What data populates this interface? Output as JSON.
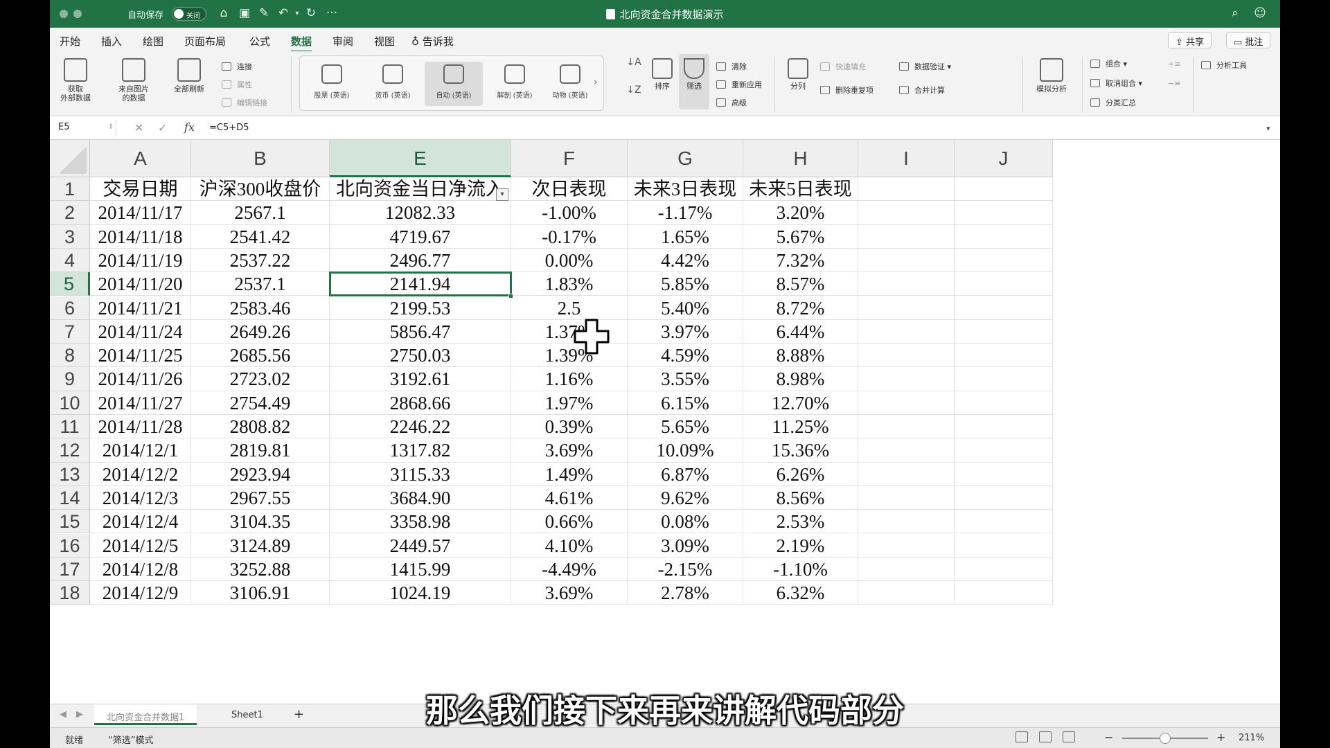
{
  "titlebar": {
    "autosave_label": "自动保存",
    "autosave_state": "关闭",
    "title": "北向资金合并数据演示",
    "more": "···"
  },
  "menu": {
    "tabs": [
      "开始",
      "插入",
      "绘图",
      "页面布局",
      "公式",
      "数据",
      "审阅",
      "视图"
    ],
    "active_tab": "数据",
    "tell_me": "告诉我",
    "share": "共享",
    "comments": "批注"
  },
  "ribbon": {
    "get_data": "获取\n外部数据",
    "from_picture": "来自图片\n的数据",
    "refresh_all": "全部刷新",
    "connections": "连接",
    "properties": "属性",
    "edit_links": "编辑链接",
    "data_types": [
      "股票 (英语)",
      "货币 (英语)",
      "自动 (英语)",
      "解剖 (英语)",
      "动物 (英语)"
    ],
    "sort_label": "排序",
    "filter_label": "筛选",
    "clear": "清除",
    "reapply": "重新应用",
    "advanced": "高级",
    "split": "分列",
    "flash_fill": "快速填充",
    "remove_duplicates": "删除重复项",
    "data_validation": "数据验证",
    "consolidate": "合并计算",
    "what_if": "模拟分析",
    "group": "组合",
    "ungroup": "取消组合",
    "subtotal": "分类汇总",
    "analysis_tools": "分析工具"
  },
  "formula_bar": {
    "name_box": "E5",
    "fx": "fx",
    "formula": "=C5+D5"
  },
  "columns": [
    "A",
    "B",
    "E",
    "F",
    "G",
    "H",
    "I",
    "J"
  ],
  "selected_column": "E",
  "headers": [
    "交易日期",
    "沪深300收盘价",
    "北向资金当日净流入",
    "次日表现",
    "未来3日表现",
    "未来5日表现"
  ],
  "rows": [
    {
      "n": "2",
      "cells": [
        "2014/11/17",
        "2567.1",
        "12082.33",
        "-1.00%",
        "-1.17%",
        "3.20%"
      ]
    },
    {
      "n": "3",
      "cells": [
        "2014/11/18",
        "2541.42",
        "4719.67",
        "-0.17%",
        "1.65%",
        "5.67%"
      ]
    },
    {
      "n": "4",
      "cells": [
        "2014/11/19",
        "2537.22",
        "2496.77",
        "0.00%",
        "4.42%",
        "7.32%"
      ]
    },
    {
      "n": "5",
      "cells": [
        "2014/11/20",
        "2537.1",
        "2141.94",
        "1.83%",
        "5.85%",
        "8.57%"
      ]
    },
    {
      "n": "6",
      "cells": [
        "2014/11/21",
        "2583.46",
        "2199.53",
        "2.5",
        "5.40%",
        "8.72%"
      ]
    },
    {
      "n": "7",
      "cells": [
        "2014/11/24",
        "2649.26",
        "5856.47",
        "1.37%",
        "3.97%",
        "6.44%"
      ]
    },
    {
      "n": "8",
      "cells": [
        "2014/11/25",
        "2685.56",
        "2750.03",
        "1.39%",
        "4.59%",
        "8.88%"
      ]
    },
    {
      "n": "9",
      "cells": [
        "2014/11/26",
        "2723.02",
        "3192.61",
        "1.16%",
        "3.55%",
        "8.98%"
      ]
    },
    {
      "n": "10",
      "cells": [
        "2014/11/27",
        "2754.49",
        "2868.66",
        "1.97%",
        "6.15%",
        "12.70%"
      ]
    },
    {
      "n": "11",
      "cells": [
        "2014/11/28",
        "2808.82",
        "2246.22",
        "0.39%",
        "5.65%",
        "11.25%"
      ]
    },
    {
      "n": "12",
      "cells": [
        "2014/12/1",
        "2819.81",
        "1317.82",
        "3.69%",
        "10.09%",
        "15.36%"
      ]
    },
    {
      "n": "13",
      "cells": [
        "2014/12/2",
        "2923.94",
        "3115.33",
        "1.49%",
        "6.87%",
        "6.26%"
      ]
    },
    {
      "n": "14",
      "cells": [
        "2014/12/3",
        "2967.55",
        "3684.90",
        "4.61%",
        "9.62%",
        "8.56%"
      ]
    },
    {
      "n": "15",
      "cells": [
        "2014/12/4",
        "3104.35",
        "3358.98",
        "0.66%",
        "0.08%",
        "2.53%"
      ]
    },
    {
      "n": "16",
      "cells": [
        "2014/12/5",
        "3124.89",
        "2449.57",
        "4.10%",
        "3.09%",
        "2.19%"
      ]
    },
    {
      "n": "17",
      "cells": [
        "2014/12/8",
        "3252.88",
        "1415.99",
        "-4.49%",
        "-2.15%",
        "-1.10%"
      ]
    },
    {
      "n": "18",
      "cells": [
        "2014/12/9",
        "3106.91",
        "1024.19",
        "3.69%",
        "2.78%",
        "6.32%"
      ]
    }
  ],
  "selected_cell": {
    "row": "5",
    "col": "E"
  },
  "sheet_tabs": [
    "北向资金合并数据1",
    "Sheet1"
  ],
  "active_sheet": "北向资金合并数据1",
  "add_sheet": "+",
  "status": {
    "ready": "就绪",
    "mode": "“筛选”模式",
    "zoom": "211%",
    "zoom_fraction": 0.5
  },
  "subtitle": "那么我们接下来再来讲解代码部分",
  "colors": {
    "accent": "#217346",
    "selected_header_bg": "#d3e5da"
  }
}
